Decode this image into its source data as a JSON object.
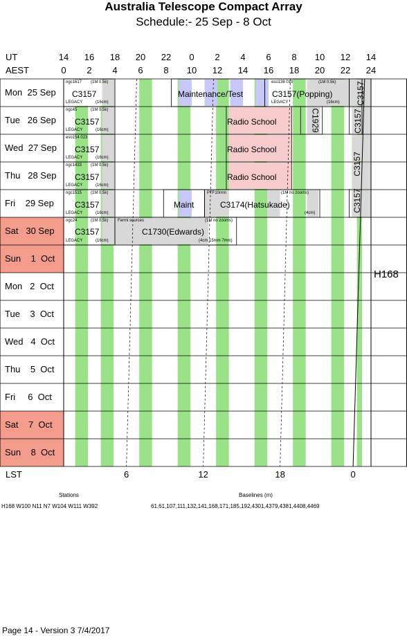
{
  "title": "Australia Telescope Compact Array",
  "subtitle": "Schedule:- 25 Sep -  8  Oct",
  "axis": {
    "ut_label": "UT",
    "aest_label": "AEST",
    "lst_label": "LST",
    "ut_ticks": [
      "14",
      "16",
      "18",
      "20",
      "22",
      "0",
      "2",
      "4",
      "6",
      "8",
      "10",
      "12",
      "14"
    ],
    "aest_ticks": [
      "0",
      "2",
      "4",
      "6",
      "8",
      "10",
      "12",
      "14",
      "16",
      "18",
      "20",
      "22",
      "24"
    ],
    "lst_ticks": [
      "6",
      "12",
      "18",
      "0"
    ]
  },
  "days": [
    {
      "label": "Mon  25 Sep",
      "weekend": false
    },
    {
      "label": "Tue   26 Sep",
      "weekend": false
    },
    {
      "label": "Wed  27 Sep",
      "weekend": false
    },
    {
      "label": "Thu   28 Sep",
      "weekend": false
    },
    {
      "label": "Fri    29 Sep",
      "weekend": false
    },
    {
      "label": "Sat   30 Sep",
      "weekend": true
    },
    {
      "label": "Sun    1  Oct",
      "weekend": true
    },
    {
      "label": "Mon   2  Oct",
      "weekend": false
    },
    {
      "label": "Tue    3  Oct",
      "weekend": false
    },
    {
      "label": "Wed   4  Oct",
      "weekend": false
    },
    {
      "label": "Thu    5  Oct",
      "weekend": false
    },
    {
      "label": "Fri     6  Oct",
      "weekend": false
    },
    {
      "label": "Sat    7  Oct",
      "weekend": true
    },
    {
      "label": "Sun    8  Oct",
      "weekend": true
    }
  ],
  "blocks": {
    "mon_c3157": "C3157",
    "mon_maint": "Maintenance/Test",
    "mon_popping": "C3157(Popping)",
    "mon_src1": "ngc1617",
    "mon_freq1": "(1M 0.5k)",
    "mon_legacy1": "LEGACY",
    "mon_cm1": "(16cm)",
    "mon_src2": "eso138 010",
    "mon_freq2": "(1M 0.5k)",
    "mon_legacy2": "LEGACY",
    "mon_cm2": "(16cm)",
    "tue_c3157": "C3157",
    "tue_radio": "Radio School",
    "tue_c1929": "C1929",
    "tue_src": "ngc45",
    "tue_freq": "(1M 0.5k)",
    "tue_legacy": "LEGACY",
    "tue_cm": "(16cm)",
    "wed_c3157": "C3157",
    "wed_radio": "Radio School",
    "wed_src": "eso154 023",
    "wed_legacy": "LEGACY",
    "wed_cm": "(16cm)",
    "thu_c3157": "C3157",
    "thu_radio": "Radio School",
    "thu_src": "ngc1433",
    "thu_freq": "(1M 0.5k)",
    "thu_legacy": "LEGACY",
    "thu_cm": "(16cm)",
    "fri_c3157": "C3157",
    "fri_maint": "Maint",
    "fri_c3174": "C3174(Hatsukade)",
    "fri_src": "ngc1515",
    "fri_freq": "(1M 0.5k)",
    "fri_legacy": "LEGACY",
    "fri_cm": "(16cm)",
    "fri_ptf": "PTF10nnn",
    "fri_freq2": "(1M no zooms)",
    "fri_cm2": "(4cm)",
    "sat_c3157": "C3157",
    "sat_c1730": "C1730(Edwards)",
    "sat_src": "ngc24",
    "sat_freq": "(1M 0.5k)",
    "sat_legacy": "LEGACY",
    "sat_cm": "(16cm)",
    "sat_fermi": "Fermi sources",
    "sat_freq2": "(1M no zooms)",
    "sat_cm2": "(4cm 15mm 7mm)",
    "vert_c3157": "C3157",
    "h168": "H168"
  },
  "footer": {
    "stations_label": "Stations",
    "stations": "H168   W100 N11 N7 W104 W111 W392",
    "baselines_label": "Baselines (m)",
    "baselines": "61,61,107,111,132,141,168,171,185,192,4301,4379,4381,4408,4469",
    "page": "Page 14 - Version 3  7/4/2017"
  },
  "colors": {
    "green": "#99e288",
    "grey": "#d8d8d8",
    "pink": "#f8cccc",
    "lilac": "#c8c8f8",
    "weekend": "#f49c8c"
  }
}
